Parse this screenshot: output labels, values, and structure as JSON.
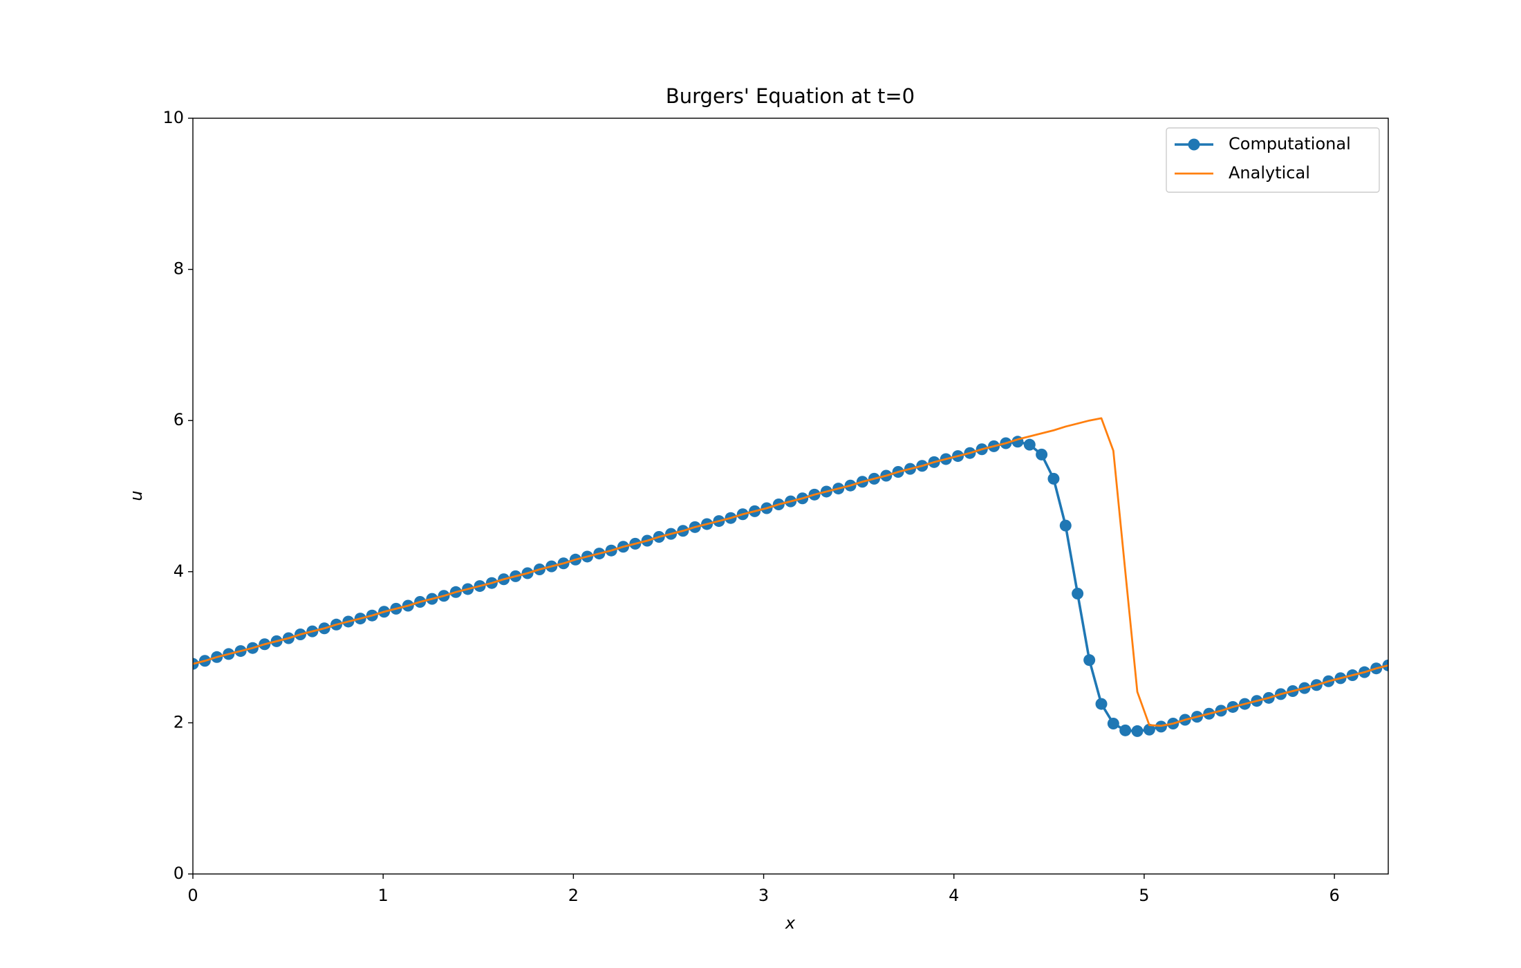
{
  "chart_data": {
    "type": "line",
    "title": "Burgers' Equation at t=0",
    "x_label": "x",
    "y_label": "u",
    "x": [
      0,
      0.063,
      0.126,
      0.188,
      0.251,
      0.314,
      0.377,
      0.44,
      0.503,
      0.565,
      0.628,
      0.691,
      0.754,
      0.817,
      0.88,
      0.942,
      1.005,
      1.068,
      1.131,
      1.194,
      1.257,
      1.319,
      1.382,
      1.445,
      1.508,
      1.571,
      1.634,
      1.696,
      1.759,
      1.822,
      1.885,
      1.948,
      2.011,
      2.073,
      2.136,
      2.199,
      2.262,
      2.325,
      2.388,
      2.45,
      2.513,
      2.576,
      2.639,
      2.702,
      2.765,
      2.827,
      2.89,
      2.953,
      3.016,
      3.079,
      3.142,
      3.204,
      3.267,
      3.33,
      3.393,
      3.456,
      3.519,
      3.581,
      3.644,
      3.707,
      3.77,
      3.833,
      3.896,
      3.958,
      4.021,
      4.084,
      4.147,
      4.21,
      4.273,
      4.335,
      4.398,
      4.461,
      4.524,
      4.587,
      4.65,
      4.712,
      4.775,
      4.838,
      4.901,
      4.964,
      5.027,
      5.089,
      5.152,
      5.215,
      5.278,
      5.341,
      5.404,
      5.466,
      5.529,
      5.592,
      5.655,
      5.718,
      5.781,
      5.843,
      5.906,
      5.969,
      6.032,
      6.095,
      6.158,
      6.22,
      6.283
    ],
    "series": [
      {
        "name": "Computational",
        "color": "#1f77b4",
        "marker": true,
        "values": [
          2.78,
          2.82,
          2.87,
          2.91,
          2.95,
          2.99,
          3.04,
          3.08,
          3.12,
          3.17,
          3.21,
          3.25,
          3.3,
          3.34,
          3.38,
          3.42,
          3.47,
          3.51,
          3.55,
          3.6,
          3.64,
          3.68,
          3.73,
          3.77,
          3.81,
          3.85,
          3.9,
          3.94,
          3.98,
          4.03,
          4.07,
          4.11,
          4.16,
          4.2,
          4.24,
          4.28,
          4.33,
          4.37,
          4.41,
          4.46,
          4.5,
          4.54,
          4.59,
          4.63,
          4.67,
          4.71,
          4.76,
          4.8,
          4.84,
          4.89,
          4.93,
          4.97,
          5.02,
          5.06,
          5.1,
          5.14,
          5.19,
          5.23,
          5.27,
          5.32,
          5.36,
          5.4,
          5.45,
          5.49,
          5.53,
          5.57,
          5.62,
          5.66,
          5.7,
          5.72,
          5.68,
          5.55,
          5.23,
          4.61,
          3.71,
          2.83,
          2.25,
          1.99,
          1.9,
          1.89,
          1.91,
          1.95,
          1.99,
          2.04,
          2.08,
          2.12,
          2.16,
          2.21,
          2.25,
          2.29,
          2.33,
          2.38,
          2.42,
          2.46,
          2.5,
          2.55,
          2.59,
          2.63,
          2.67,
          2.72,
          2.76
        ]
      },
      {
        "name": "Analytical",
        "color": "#ff7f0e",
        "marker": false,
        "values": [
          2.78,
          2.82,
          2.87,
          2.91,
          2.95,
          2.99,
          3.04,
          3.08,
          3.12,
          3.17,
          3.21,
          3.25,
          3.3,
          3.34,
          3.38,
          3.42,
          3.47,
          3.51,
          3.55,
          3.6,
          3.64,
          3.68,
          3.73,
          3.77,
          3.81,
          3.85,
          3.9,
          3.94,
          3.98,
          4.03,
          4.07,
          4.11,
          4.16,
          4.2,
          4.24,
          4.28,
          4.33,
          4.37,
          4.41,
          4.46,
          4.5,
          4.54,
          4.59,
          4.63,
          4.67,
          4.71,
          4.76,
          4.8,
          4.84,
          4.89,
          4.93,
          4.97,
          5.02,
          5.06,
          5.1,
          5.14,
          5.19,
          5.23,
          5.27,
          5.32,
          5.36,
          5.4,
          5.45,
          5.49,
          5.53,
          5.57,
          5.62,
          5.66,
          5.7,
          5.75,
          5.79,
          5.83,
          5.87,
          5.92,
          5.96,
          6.0,
          6.03,
          5.6,
          4.0,
          2.41,
          1.97,
          1.96,
          1.99,
          2.04,
          2.08,
          2.12,
          2.16,
          2.21,
          2.25,
          2.29,
          2.33,
          2.38,
          2.42,
          2.46,
          2.5,
          2.55,
          2.59,
          2.63,
          2.67,
          2.72,
          2.76
        ]
      }
    ],
    "xlim": [
      0,
      6.283
    ],
    "xticks": [
      0,
      1,
      2,
      3,
      4,
      5,
      6
    ],
    "ylim": [
      0,
      10
    ],
    "yticks": [
      0,
      2,
      4,
      6,
      8,
      10
    ],
    "grid": false,
    "legend": "upper right"
  }
}
